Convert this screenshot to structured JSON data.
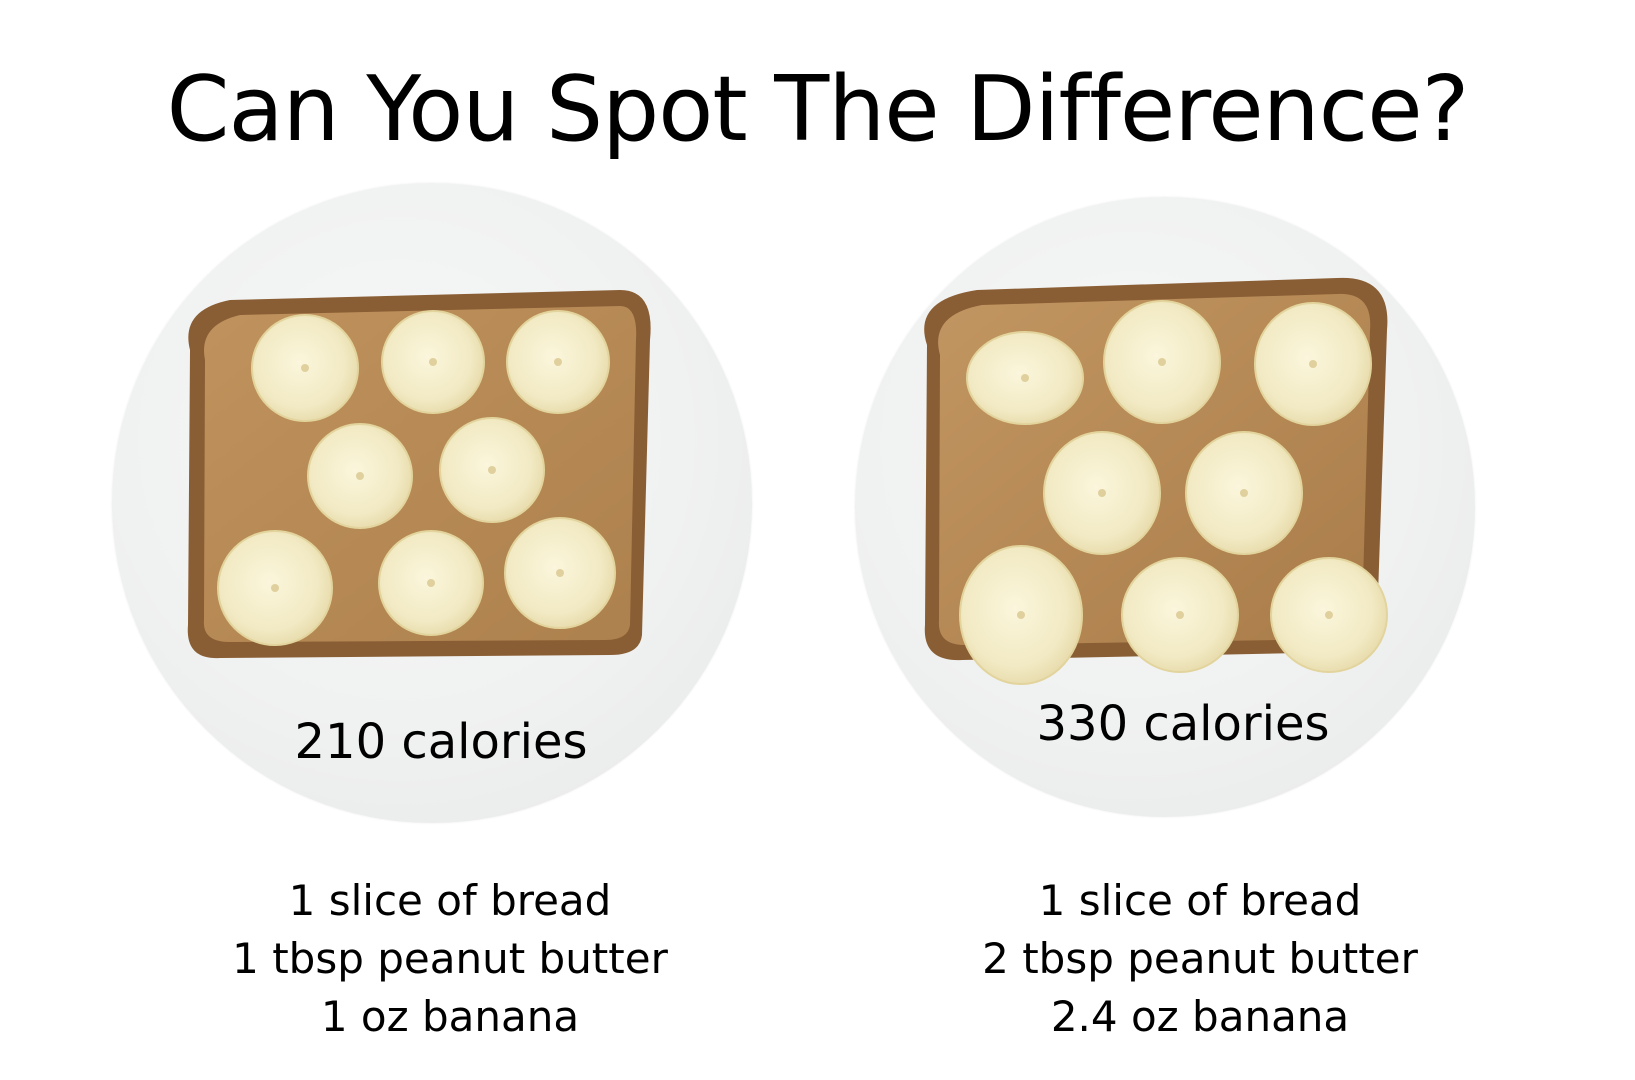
{
  "title": "Can You Spot The Difference?",
  "colors": {
    "background": "#ffffff",
    "plate": "#eff0f0",
    "crust": "#8a5e34",
    "peanut_butter": "#b78a55",
    "banana": "#f4edc9",
    "text": "#000000"
  },
  "panels": [
    {
      "calories": "210 calories",
      "ingredients": [
        "1 slice of bread",
        "1 tbsp peanut butter",
        "1 oz banana"
      ]
    },
    {
      "calories": "330 calories",
      "ingredients": [
        "1 slice of bread",
        "2 tbsp peanut butter",
        "2.4 oz banana"
      ]
    }
  ]
}
